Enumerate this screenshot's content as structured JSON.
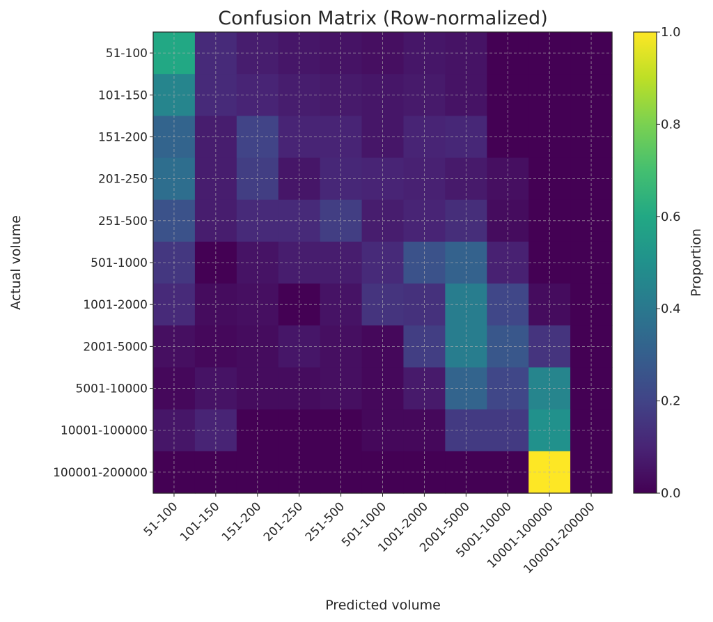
{
  "chart_data": {
    "type": "heatmap",
    "title": "Confusion Matrix (Row-normalized)",
    "xlabel": "Predicted volume",
    "ylabel": "Actual volume",
    "x_categories": [
      "51-100",
      "101-150",
      "151-200",
      "201-250",
      "251-500",
      "501-1000",
      "1001-2000",
      "2001-5000",
      "5001-10000",
      "10001-100000",
      "100001-200000"
    ],
    "y_categories": [
      "51-100",
      "101-150",
      "151-200",
      "201-250",
      "251-500",
      "501-1000",
      "1001-2000",
      "2001-5000",
      "5001-10000",
      "10001-100000",
      "100001-200000"
    ],
    "values": [
      [
        0.6,
        0.12,
        0.08,
        0.06,
        0.05,
        0.04,
        0.06,
        0.05,
        0.0,
        0.0,
        0.0
      ],
      [
        0.45,
        0.12,
        0.1,
        0.08,
        0.07,
        0.06,
        0.07,
        0.05,
        0.0,
        0.0,
        0.0
      ],
      [
        0.32,
        0.08,
        0.2,
        0.1,
        0.1,
        0.06,
        0.1,
        0.11,
        0.0,
        0.0,
        0.0
      ],
      [
        0.36,
        0.08,
        0.18,
        0.06,
        0.11,
        0.1,
        0.09,
        0.07,
        0.04,
        0.0,
        0.0
      ],
      [
        0.25,
        0.08,
        0.12,
        0.12,
        0.18,
        0.08,
        0.1,
        0.13,
        0.03,
        0.0,
        0.0
      ],
      [
        0.16,
        0.0,
        0.05,
        0.08,
        0.08,
        0.12,
        0.25,
        0.31,
        0.09,
        0.0,
        0.0
      ],
      [
        0.12,
        0.03,
        0.04,
        0.0,
        0.05,
        0.15,
        0.14,
        0.42,
        0.21,
        0.03,
        0.0
      ],
      [
        0.04,
        0.02,
        0.03,
        0.06,
        0.04,
        0.02,
        0.18,
        0.42,
        0.27,
        0.15,
        0.0
      ],
      [
        0.02,
        0.05,
        0.03,
        0.03,
        0.04,
        0.02,
        0.07,
        0.32,
        0.21,
        0.45,
        0.0
      ],
      [
        0.06,
        0.1,
        0.0,
        0.0,
        0.0,
        0.02,
        0.02,
        0.17,
        0.17,
        0.5,
        0.0
      ],
      [
        0.0,
        0.0,
        0.0,
        0.0,
        0.0,
        0.0,
        0.0,
        0.0,
        0.0,
        1.0,
        0.0
      ]
    ],
    "colorbar": {
      "label": "Proportion",
      "ticks": [
        "0.0",
        "0.2",
        "0.4",
        "0.6",
        "0.8",
        "1.0"
      ],
      "range": [
        0.0,
        1.0
      ],
      "colormap": "viridis"
    },
    "grid": true,
    "grid_style": "dashed"
  }
}
